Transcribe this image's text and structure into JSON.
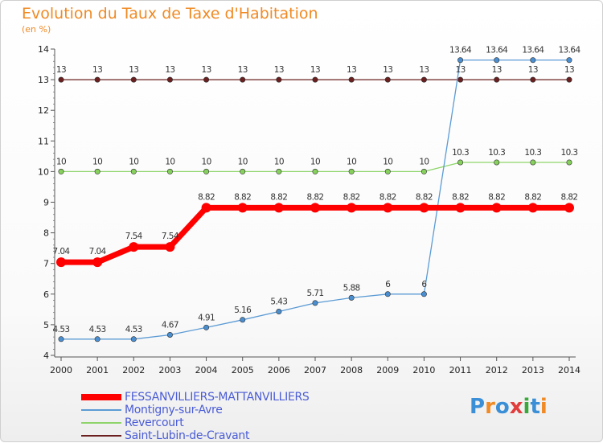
{
  "header": {
    "title": "Evolution du Taux de Taxe d'Habitation",
    "subtitle": "(en %)"
  },
  "logo": {
    "text": "Proxiti"
  },
  "chart_data": {
    "type": "line",
    "title": "Evolution du Taux de Taxe d'Habitation",
    "ylabel": "(en %)",
    "xlabel": "",
    "ylim": [
      4,
      14
    ],
    "yticks": [
      4,
      5,
      6,
      7,
      8,
      9,
      10,
      11,
      12,
      13,
      14
    ],
    "grid": false,
    "legend_position": "bottom-left",
    "x": [
      "2000",
      "2001",
      "2002",
      "2003",
      "2004",
      "2005",
      "2006",
      "2007",
      "2008",
      "2009",
      "2010",
      "2011",
      "2012",
      "2013",
      "2014"
    ],
    "series": [
      {
        "name": "FESSANVILLIERS-MATTANVILLIERS",
        "color": "#ff0000",
        "values": [
          7.04,
          7.04,
          7.54,
          7.54,
          8.82,
          8.82,
          8.82,
          8.82,
          8.82,
          8.82,
          8.82,
          8.82,
          8.82,
          8.82,
          8.82
        ],
        "labels": [
          "7.04",
          "7.04",
          "7.54",
          "7.54",
          "8.82",
          "8.82",
          "8.82",
          "8.82",
          "8.82",
          "8.82",
          "8.82",
          "8.82",
          "8.82",
          "8.82",
          "8.82"
        ]
      },
      {
        "name": "Montigny-sur-Avre",
        "color": "#5b9bd5",
        "values": [
          4.53,
          4.53,
          4.53,
          4.67,
          4.91,
          5.16,
          5.43,
          5.71,
          5.88,
          6,
          6,
          13.64,
          13.64,
          13.64,
          13.64
        ],
        "labels": [
          "4.53",
          "4.53",
          "4.53",
          "4.67",
          "4.91",
          "5.16",
          "5.43",
          "5.71",
          "5.88",
          "6",
          "6",
          "13.64",
          "13.64",
          "13.64",
          "13.64"
        ]
      },
      {
        "name": "Revercourt",
        "color": "#8ed46a",
        "values": [
          10,
          10,
          10,
          10,
          10,
          10,
          10,
          10,
          10,
          10,
          10,
          10.3,
          10.3,
          10.3,
          10.3
        ],
        "labels": [
          "10",
          "10",
          "10",
          "10",
          "10",
          "10",
          "10",
          "10",
          "10",
          "10",
          "10",
          "10.3",
          "10.3",
          "10.3",
          "10.3"
        ]
      },
      {
        "name": "Saint-Lubin-de-Cravant",
        "color": "#6b1f1f",
        "values": [
          13,
          13,
          13,
          13,
          13,
          13,
          13,
          13,
          13,
          13,
          13,
          13,
          13,
          13,
          13
        ],
        "labels": [
          "13",
          "13",
          "13",
          "13",
          "13",
          "13",
          "13",
          "13",
          "13",
          "13",
          "13",
          "13",
          "13",
          "13",
          "13"
        ]
      }
    ]
  }
}
